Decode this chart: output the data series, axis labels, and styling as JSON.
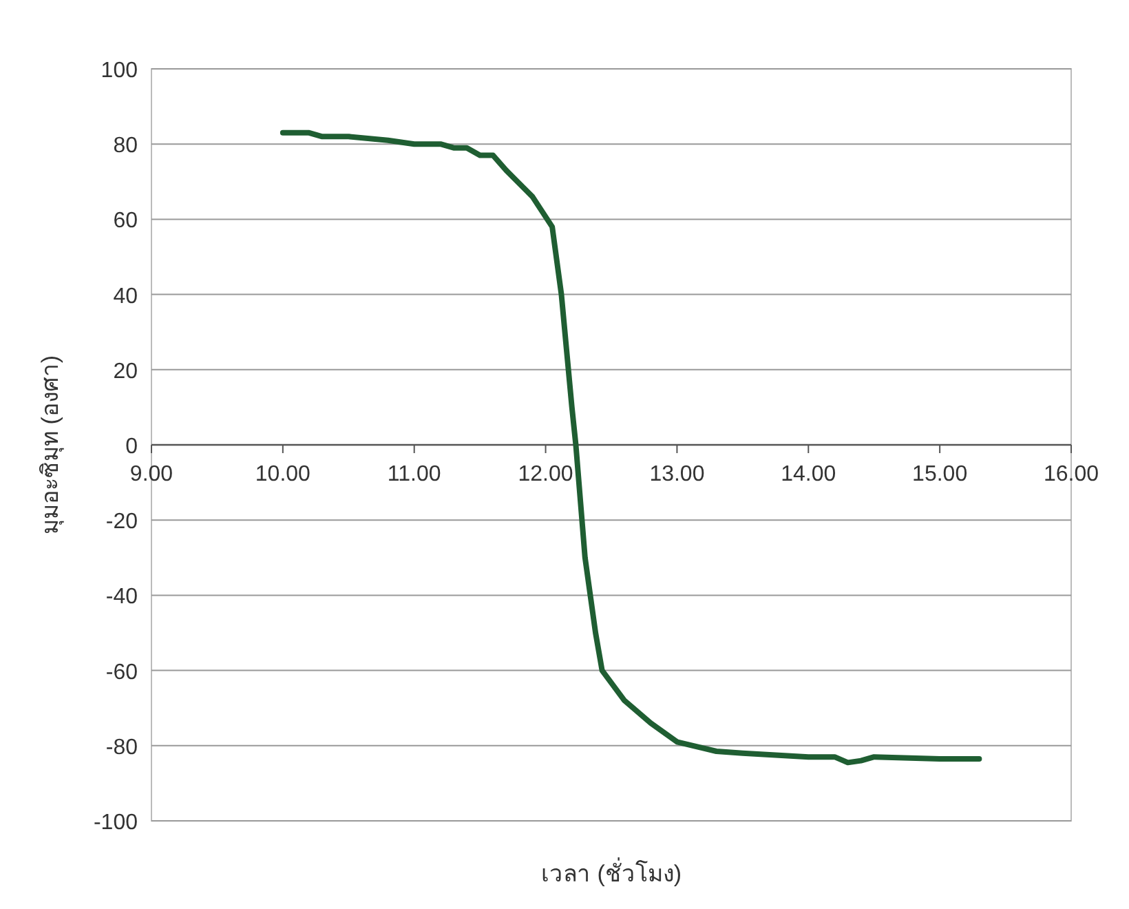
{
  "chart_data": {
    "type": "line",
    "xlabel": "เวลา (ชั่วโมง)",
    "ylabel": "มุมอะซิมุท (องศา)",
    "series": [
      {
        "color": "#1f5e32",
        "x": [
          10.0,
          10.2,
          10.3,
          10.5,
          10.8,
          11.0,
          11.2,
          11.3,
          11.4,
          11.5,
          11.6,
          11.7,
          11.9,
          12.05,
          12.12,
          12.2,
          12.23,
          12.3,
          12.38,
          12.43,
          12.6,
          12.8,
          13.0,
          13.3,
          13.5,
          14.0,
          14.2,
          14.3,
          14.4,
          14.5,
          15.0,
          15.3
        ],
        "values": [
          83,
          83,
          82,
          82,
          81,
          80,
          80,
          79,
          79,
          77,
          77,
          73,
          66,
          58,
          40,
          10,
          0,
          -30,
          -50,
          -60,
          -68,
          -74,
          -79,
          -81.5,
          -82,
          -83,
          -83,
          -84.5,
          -84,
          -83,
          -83.5,
          -83.5
        ]
      }
    ],
    "xlim": [
      9,
      16
    ],
    "ylim": [
      -100,
      100
    ],
    "xticks": [
      {
        "value": 9,
        "label": "9.00"
      },
      {
        "value": 10,
        "label": "10.00"
      },
      {
        "value": 11,
        "label": "11.00"
      },
      {
        "value": 12,
        "label": "12.00"
      },
      {
        "value": 13,
        "label": "13.00"
      },
      {
        "value": 14,
        "label": "14.00"
      },
      {
        "value": 15,
        "label": "15.00"
      },
      {
        "value": 16,
        "label": "16.00"
      }
    ],
    "yticks": [
      -100,
      -80,
      -60,
      -40,
      -20,
      0,
      20,
      40,
      60,
      80,
      100
    ],
    "grid": "y",
    "line_style": "solid"
  }
}
